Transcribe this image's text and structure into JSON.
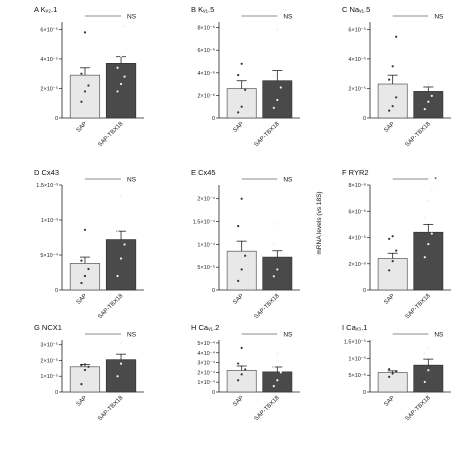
{
  "figure": {
    "ylabel": "mRNA levels (vs 18S)",
    "bar_colors": [
      "#e8e8e8",
      "#4a4a4a"
    ],
    "categories": [
      "SAP",
      "SAP-TBX18"
    ]
  },
  "chart_data": [
    {
      "type": "bar",
      "letter": "A",
      "title": "A Kᵥ₂.1",
      "categories": [
        "SAP",
        "SAP-TBX18"
      ],
      "values": [
        2.9e-05,
        3.7e-05
      ],
      "errors": [
        5e-06,
        4.5e-06
      ],
      "points": [
        [
          1.1e-05,
          1.8e-05,
          2.2e-05,
          3e-05,
          5.8e-05
        ],
        [
          1.8e-05,
          2.3e-05,
          2.8e-05,
          3.4e-05,
          4.2e-05,
          6.2e-05
        ]
      ],
      "ylim": [
        0,
        6.5e-05
      ],
      "yticks": [
        0,
        2e-05,
        4e-05,
        6e-05
      ],
      "ytick_labels": [
        "0",
        "2×10⁻⁵",
        "4×10⁻⁵",
        "6×10⁻⁵"
      ],
      "annotation": "NS",
      "grid": false
    },
    {
      "type": "bar",
      "letter": "B",
      "title": "B Kᵥ₁.5",
      "categories": [
        "SAP",
        "SAP-TBX18"
      ],
      "values": [
        2.6e-06,
        3.3e-06
      ],
      "errors": [
        7e-07,
        9e-07
      ],
      "points": [
        [
          5e-07,
          1e-06,
          2.5e-06,
          3.8e-06,
          4.8e-06
        ],
        [
          9e-07,
          1.6e-06,
          2.7e-06,
          3.7e-06,
          7.8e-06
        ]
      ],
      "ylim": [
        0,
        8.5e-06
      ],
      "yticks": [
        0,
        2e-06,
        4e-06,
        6e-06,
        8e-06
      ],
      "ytick_labels": [
        "0",
        "2×10⁻⁶",
        "4×10⁻⁶",
        "6×10⁻⁶",
        "8×10⁻⁶"
      ],
      "annotation": "NS",
      "grid": false
    },
    {
      "type": "bar",
      "letter": "C",
      "title": "C Naᵥ₁.5",
      "categories": [
        "SAP",
        "SAP-TBX18"
      ],
      "values": [
        2.3e-05,
        1.8e-05
      ],
      "errors": [
        6e-06,
        3e-06
      ],
      "points": [
        [
          5e-06,
          8e-06,
          1.4e-05,
          2.6e-05,
          3.5e-05,
          5.5e-05
        ],
        [
          6e-06,
          1.1e-05,
          1.5e-05,
          1.9e-05,
          2.3e-05
        ]
      ],
      "ylim": [
        0,
        6.5e-05
      ],
      "yticks": [
        0,
        2e-05,
        4e-05,
        6e-05
      ],
      "ytick_labels": [
        "0",
        "2×10⁻⁵",
        "4×10⁻⁵",
        "6×10⁻⁵"
      ],
      "annotation": "NS",
      "grid": false
    },
    {
      "type": "bar",
      "letter": "D",
      "title": "D Cx43",
      "categories": [
        "SAP",
        "SAP-TBX18"
      ],
      "values": [
        0.00038,
        0.00072
      ],
      "errors": [
        9e-05,
        0.00012
      ],
      "points": [
        [
          0.0001,
          0.0002,
          0.0003,
          0.00042,
          0.00086
        ],
        [
          0.0002,
          0.00045,
          0.00065,
          0.00083,
          0.00134
        ]
      ],
      "ylim": [
        0,
        0.0015
      ],
      "yticks": [
        0,
        0.0005,
        0.001,
        0.0015
      ],
      "ytick_labels": [
        "0",
        "5×10⁻⁴",
        "1×10⁻³",
        "1.5×10⁻³"
      ],
      "annotation": "NS",
      "grid": false
    },
    {
      "type": "bar",
      "letter": "E",
      "title": "E Cx45",
      "categories": [
        "SAP",
        "SAP-TBX18"
      ],
      "values": [
        8.5e-05,
        7.2e-05
      ],
      "errors": [
        2.2e-05,
        1.4e-05
      ],
      "points": [
        [
          2e-05,
          4.5e-05,
          7.5e-05,
          0.00014,
          0.0002
        ],
        [
          3e-05,
          4.5e-05,
          8e-05,
          0.0001,
          0.000145
        ]
      ],
      "ylim": [
        0,
        0.00023
      ],
      "yticks": [
        0,
        5e-05,
        0.0001,
        0.00015,
        0.0002
      ],
      "ytick_labels": [
        "0",
        "5×10⁻⁵",
        "1×10⁻⁴",
        "1.5×10⁻⁴",
        "2×10⁻⁴"
      ],
      "annotation": "NS",
      "grid": false
    },
    {
      "type": "bar",
      "letter": "F",
      "title": "F RYR2",
      "categories": [
        "SAP",
        "SAP-TBX18"
      ],
      "values": [
        2.4e-06,
        4.4e-06
      ],
      "errors": [
        4e-07,
        6e-07
      ],
      "points": [
        [
          1.5e-06,
          2.2e-06,
          3e-06,
          3.9e-06,
          4.1e-06
        ],
        [
          2.5e-06,
          3.5e-06,
          4.3e-06,
          5.5e-06,
          6.8e-06,
          7.6e-06
        ]
      ],
      "ylim": [
        0,
        8e-06
      ],
      "yticks": [
        0,
        2e-06,
        4e-06,
        6e-06,
        8e-06
      ],
      "ytick_labels": [
        "0",
        "2×10⁻⁶",
        "4×10⁻⁶",
        "6×10⁻⁶",
        "8×10⁻⁶"
      ],
      "annotation": "*",
      "grid": false
    },
    {
      "type": "bar",
      "letter": "G",
      "title": "G NCX1",
      "categories": [
        "SAP",
        "SAP-TBX18"
      ],
      "values": [
        1.6e-05,
        2.05e-05
      ],
      "errors": [
        1.5e-06,
        3.5e-06
      ],
      "points": [
        [
          5e-06,
          1.4e-05,
          1.6e-05,
          1.7e-05,
          1.75e-05
        ],
        [
          1e-05,
          1.8e-05,
          2.2e-05,
          2.5e-05,
          3.1e-05
        ]
      ],
      "ylim": [
        0,
        3.3e-05
      ],
      "yticks": [
        0,
        1e-05,
        2e-05,
        3e-05
      ],
      "ytick_labels": [
        "0",
        "1×10⁻⁵",
        "2×10⁻⁵",
        "3×10⁻⁵"
      ],
      "annotation": "NS",
      "grid": false
    },
    {
      "type": "bar",
      "letter": "H",
      "title": "H Caᵥ₁.2",
      "categories": [
        "SAP",
        "SAP-TBX18"
      ],
      "values": [
        0.00022,
        0.000205
      ],
      "errors": [
        4.5e-05,
        5e-05
      ],
      "points": [
        [
          0.00012,
          0.00018,
          0.00023,
          0.00029,
          0.00045
        ],
        [
          6e-05,
          0.00012,
          0.0002,
          0.00026,
          0.00039
        ]
      ],
      "ylim": [
        0,
        0.00053
      ],
      "yticks": [
        0,
        0.0001,
        0.0002,
        0.0003,
        0.0004,
        0.0005
      ],
      "ytick_labels": [
        "0",
        "1×10⁻⁴",
        "2×10⁻⁴",
        "3×10⁻⁴",
        "4×10⁻⁴",
        "5×10⁻⁴"
      ],
      "annotation": "NS",
      "grid": false
    },
    {
      "type": "bar",
      "letter": "I",
      "title": "I Caᵥ₃.1",
      "categories": [
        "SAP",
        "SAP-TBX18"
      ],
      "values": [
        5.8e-06,
        8e-06
      ],
      "errors": [
        5e-07,
        1.8e-06
      ],
      "points": [
        [
          4.5e-06,
          5.5e-06,
          6.2e-06,
          6.8e-06
        ],
        [
          3e-06,
          6.5e-06,
          9e-06,
          1.15e-05,
          1.3e-05
        ]
      ],
      "ylim": [
        0,
        1.55e-05
      ],
      "yticks": [
        0,
        5e-06,
        1e-05,
        1.5e-05
      ],
      "ytick_labels": [
        "0",
        "5×10⁻⁶",
        "1×10⁻⁵",
        "1.5×10⁻⁵"
      ],
      "annotation": "NS",
      "grid": false
    }
  ]
}
